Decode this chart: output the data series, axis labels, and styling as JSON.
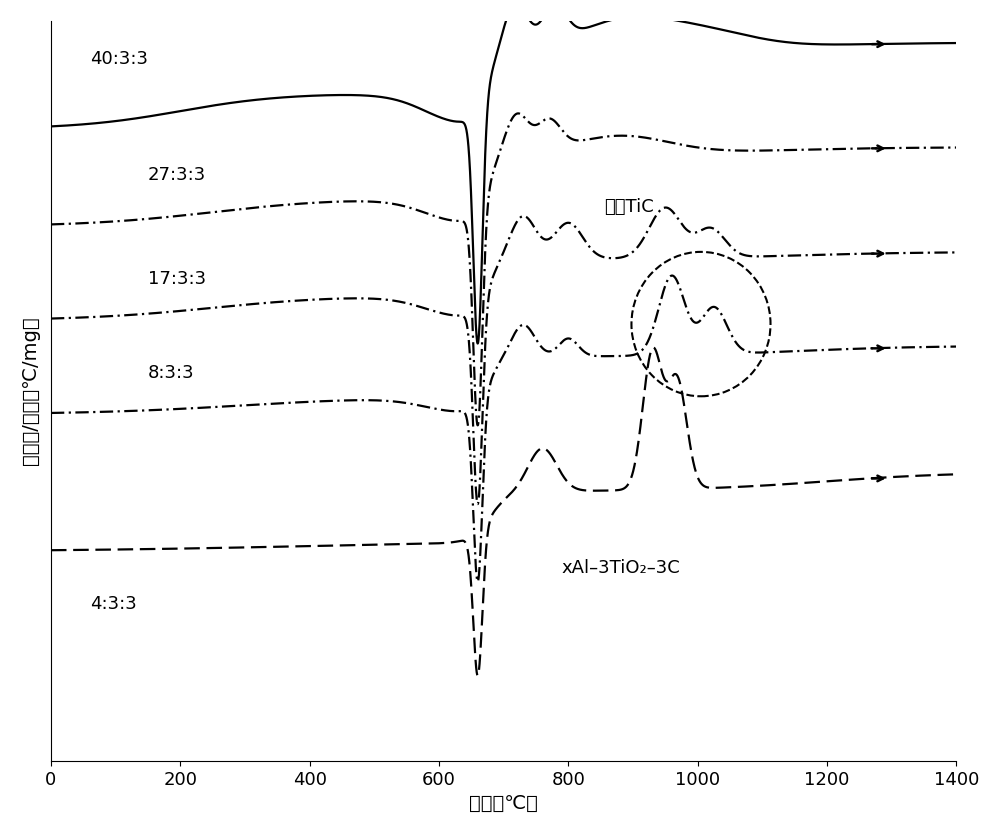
{
  "title": "",
  "xlabel": "温度（℃）",
  "ylabel": "温度差/重量（℃/mg）",
  "xlim": [
    0,
    1400
  ],
  "ylim": [
    -1.0,
    1.05
  ],
  "xticks": [
    0,
    200,
    400,
    600,
    800,
    1000,
    1200,
    1400
  ],
  "labels": [
    "40:3:3",
    "27:3:3",
    "17:3:3",
    "8:3:3",
    "4:3:3"
  ],
  "formula_label": "xAl–3TiO₂–3C",
  "synth_label": "合成TiC",
  "offsets": {
    "40": 0.75,
    "27": 0.48,
    "17": 0.22,
    "8": -0.04,
    "4": -0.42
  }
}
